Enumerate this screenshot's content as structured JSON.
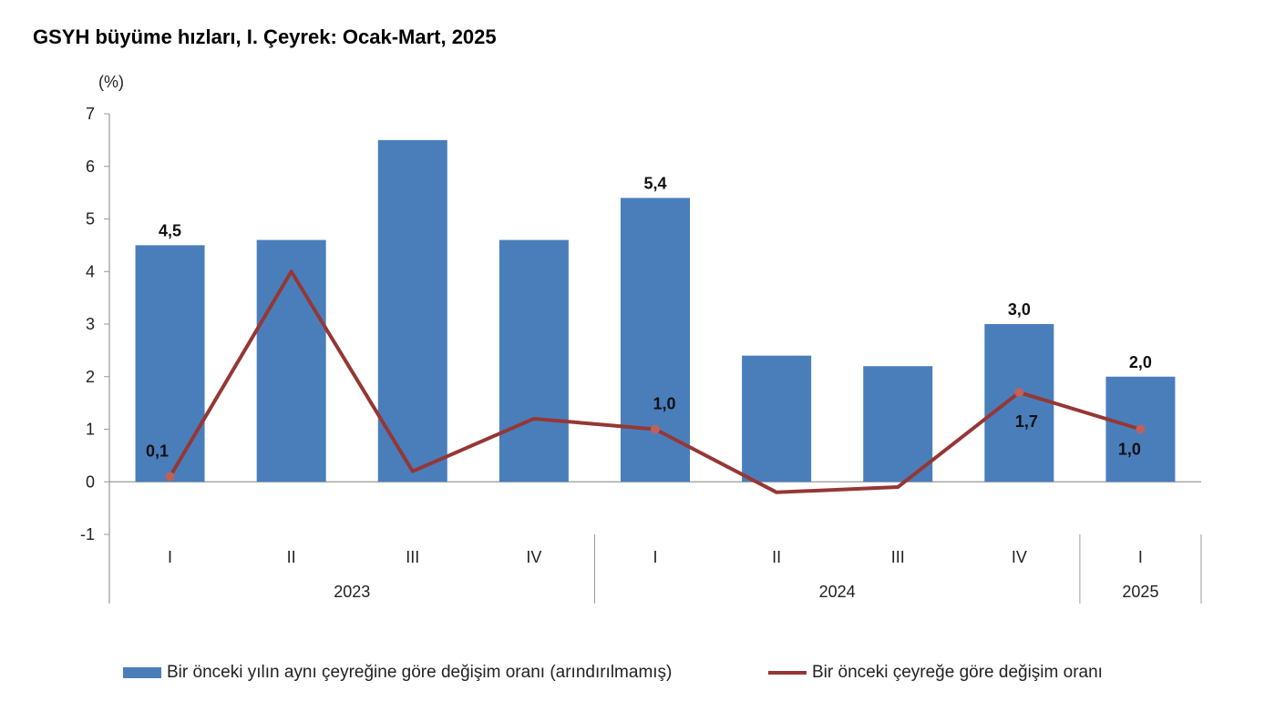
{
  "chart_data": {
    "type": "bar",
    "title": "GSYH büyüme hızları, I. Çeyrek: Ocak-Mart, 2025",
    "ylabel": "(%)",
    "ylim": [
      -1,
      7
    ],
    "yticks": [
      -1,
      0,
      1,
      2,
      3,
      4,
      5,
      6,
      7
    ],
    "grid": false,
    "legend_position": "bottom",
    "categories": [
      "I",
      "II",
      "III",
      "IV",
      "I",
      "II",
      "III",
      "IV",
      "I"
    ],
    "year_groups": [
      {
        "label": "2023",
        "count": 4
      },
      {
        "label": "2024",
        "count": 4
      },
      {
        "label": "2025",
        "count": 1
      }
    ],
    "series": [
      {
        "name": "Bir önceki yılın aynı çeyreğine göre değişim oranı (arındırılmamış)",
        "type": "bar",
        "color": "#4a7ebb",
        "values": [
          4.5,
          4.6,
          6.5,
          4.6,
          5.4,
          2.4,
          2.2,
          3.0,
          2.0
        ],
        "labels": [
          "4,5",
          "",
          "",
          "",
          "5,4",
          "",
          "",
          "3,0",
          "2,0"
        ]
      },
      {
        "name": "Bir önceki çeyreğe göre değişim oranı",
        "type": "line",
        "color": "#953735",
        "values": [
          0.1,
          4.0,
          0.2,
          1.2,
          1.0,
          -0.2,
          -0.1,
          1.7,
          1.0
        ],
        "labels": [
          "0,1",
          "",
          "",
          "",
          "1,0",
          "",
          "",
          "1,7",
          "1,0"
        ]
      }
    ]
  }
}
